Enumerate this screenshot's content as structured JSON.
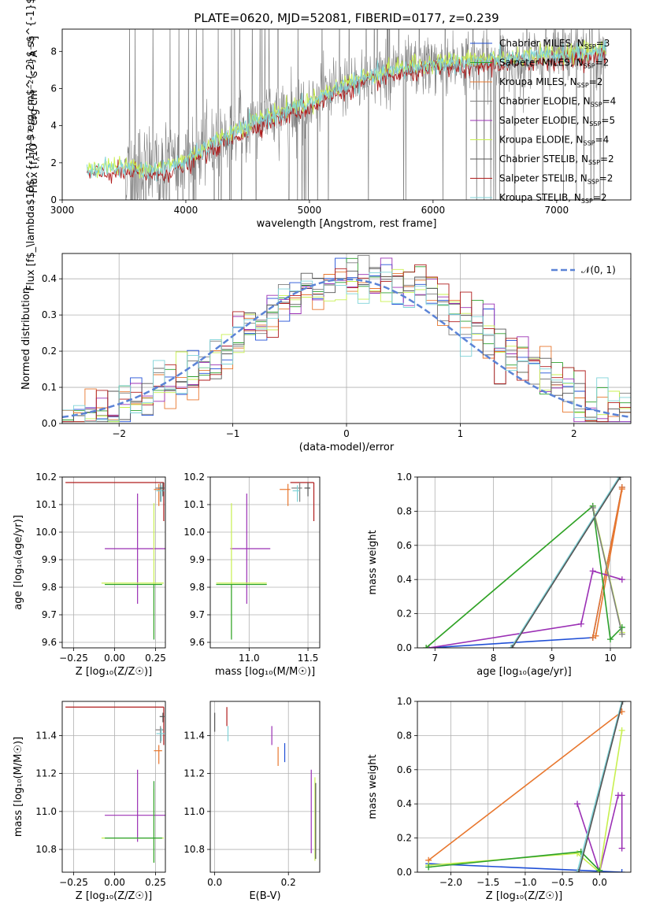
{
  "colors": {
    "chabrier_miles": "#1f4fd6",
    "salpeter_miles": "#2ca02c",
    "kroupa_miles": "#e8772e",
    "chabrier_elodie": "#7f7f7f",
    "salpeter_elodie": "#9b30b5",
    "kroupa_elodie": "#c8f050",
    "chabrier_stelib": "#555555",
    "salpeter_stelib": "#b01c1c",
    "kroupa_stelib": "#7fd3d8",
    "gauss": "#5b83d6",
    "grid": "#b0b0b0"
  },
  "chart_data": [
    {
      "id": "spectrum",
      "type": "line",
      "title": "PLATE=0620, MJD=52081, FIBERID=0177, z=0.239",
      "xlabel": "wavelength [Angstrom, rest frame]",
      "ylabel": "Flux [f$_\\lambda$10$^{-17}$ erg cm$^{-2}$ s$^{-1}$ A$^{-1}$]",
      "ylabel_parts": [
        "Flux [f",
        "λ",
        "10",
        "−17",
        " erg cm",
        "−2",
        " s",
        "−1",
        " A",
        "−1",
        "]"
      ],
      "xlim": [
        3000,
        7600
      ],
      "ylim": [
        0,
        9.2
      ],
      "xticks": [
        "3000",
        "4000",
        "5000",
        "6000",
        "7000"
      ],
      "yticks": [
        "0",
        "2",
        "4",
        "6",
        "8"
      ],
      "grid": false,
      "legend_position": "top-right",
      "legend": [
        {
          "main": "Chabrier MILES, N",
          "sub": "SSP",
          "rest": "=3",
          "color_key": "chabrier_miles"
        },
        {
          "main": "Salpeter MILES, N",
          "sub": "SSP",
          "rest": "=2",
          "color_key": "salpeter_miles"
        },
        {
          "main": "Kroupa MILES, N",
          "sub": "SSP",
          "rest": "=2",
          "color_key": "kroupa_miles"
        },
        {
          "main": "Chabrier ELODIE, N",
          "sub": "SSP",
          "rest": "=4",
          "color_key": "chabrier_elodie"
        },
        {
          "main": "Salpeter ELODIE, N",
          "sub": "SSP",
          "rest": "=5",
          "color_key": "salpeter_elodie"
        },
        {
          "main": "Kroupa ELODIE, N",
          "sub": "SSP",
          "rest": "=4",
          "color_key": "kroupa_elodie"
        },
        {
          "main": "Chabrier STELIB, N",
          "sub": "SSP",
          "rest": "=2",
          "color_key": "chabrier_stelib"
        },
        {
          "main": "Salpeter STELIB, N",
          "sub": "SSP",
          "rest": "=2",
          "color_key": "salpeter_stelib"
        },
        {
          "main": "Kroupa STELIB, N",
          "sub": "SSP",
          "rest": "=2",
          "color_key": "kroupa_stelib"
        }
      ],
      "continuum": {
        "x": [
          3200,
          3500,
          3800,
          4000,
          4300,
          4600,
          5000,
          5300,
          5600,
          6000,
          6300,
          6700,
          7000,
          7400
        ],
        "y": [
          1.6,
          1.7,
          1.6,
          2.1,
          3.3,
          4.3,
          5.2,
          6.2,
          6.8,
          7.3,
          7.4,
          7.6,
          7.8,
          8.0
        ]
      },
      "data_noise_start": 3500,
      "model_start": 3200
    },
    {
      "id": "residuals",
      "type": "histogram",
      "xlabel": "(data-model)/error",
      "ylabel": "Normed distribution",
      "xlim": [
        -2.5,
        2.5
      ],
      "ylim": [
        0,
        0.47
      ],
      "xticks": [
        "−2",
        "−1",
        "0",
        "1",
        "2"
      ],
      "yticks": [
        "0.0",
        "0.1",
        "0.2",
        "0.3",
        "0.4"
      ],
      "grid": true,
      "legend_position": "top-right",
      "legend": [
        {
          "label": "𝒩(0, 1)",
          "color_key": "gauss"
        }
      ],
      "bin_width": 0.1
    },
    {
      "id": "age_vs_Z",
      "type": "scatter",
      "xlabel": "Z [log₁₀(Z/Z☉)]",
      "ylabel": "age  [log₁₀(age/yr)]",
      "xlim": [
        -0.32,
        0.31
      ],
      "ylim": [
        9.58,
        10.2
      ],
      "xticks": [
        "−0.25",
        "0.00",
        "0.25"
      ],
      "yticks": [
        "9.6",
        "9.7",
        "9.8",
        "9.9",
        "10.0",
        "10.1",
        "10.2"
      ],
      "grid": true,
      "points": [
        {
          "key": "salpeter_stelib",
          "x": 0.3,
          "xerr_lo": 0.6,
          "xerr_hi": 0.0,
          "y": 10.18,
          "yerr_lo": 0.14,
          "yerr_hi": 0.0
        },
        {
          "key": "salpeter_elodie",
          "x": 0.14,
          "xerr_lo": 0.2,
          "xerr_hi": 0.17,
          "y": 9.94,
          "yerr_lo": 0.2,
          "yerr_hi": 0.2
        },
        {
          "key": "kroupa_elodie",
          "x": 0.24,
          "xerr_lo": 0.32,
          "xerr_hi": 0.06,
          "y": 9.815,
          "yerr_lo": 0.2,
          "yerr_hi": 0.29
        },
        {
          "key": "salpeter_miles",
          "x": 0.24,
          "xerr_lo": 0.3,
          "xerr_hi": 0.05,
          "y": 9.81,
          "yerr_lo": 0.2,
          "yerr_hi": 0.0
        },
        {
          "key": "kroupa_miles",
          "x": 0.27,
          "xerr_lo": 0.03,
          "xerr_hi": 0.02,
          "y": 10.155,
          "yerr_lo": 0.06,
          "yerr_hi": 0.02
        },
        {
          "key": "chabrier_elodie",
          "x": 0.28,
          "xerr_lo": 0.03,
          "xerr_hi": 0.02,
          "y": 10.16,
          "yerr_lo": 0.05,
          "yerr_hi": 0.02
        },
        {
          "key": "kroupa_stelib",
          "x": 0.285,
          "xerr_lo": 0.03,
          "xerr_hi": 0.02,
          "y": 10.15,
          "yerr_lo": 0.04,
          "yerr_hi": 0.02
        },
        {
          "key": "chabrier_stelib",
          "x": 0.295,
          "xerr_lo": 0.02,
          "xerr_hi": 0.01,
          "y": 10.16,
          "yerr_lo": 0.03,
          "yerr_hi": 0.02
        }
      ]
    },
    {
      "id": "age_vs_mass",
      "type": "scatter",
      "xlabel": "mass [log₁₀(M/M☉)]",
      "ylabel": "",
      "xlim": [
        10.67,
        11.6
      ],
      "ylim": [
        9.58,
        10.2
      ],
      "xticks": [
        "11.0",
        "11.5"
      ],
      "yticks": [
        "9.6",
        "9.7",
        "9.8",
        "9.9",
        "10.0",
        "10.1",
        "10.2"
      ],
      "grid": true,
      "points": [
        {
          "key": "salpeter_stelib",
          "x": 11.55,
          "xerr_lo": 0.2,
          "xerr_hi": 0.0,
          "y": 10.18,
          "yerr_lo": 0.14,
          "yerr_hi": 0.0
        },
        {
          "key": "salpeter_elodie",
          "x": 10.98,
          "xerr_lo": 0.14,
          "xerr_hi": 0.2,
          "y": 9.94,
          "yerr_lo": 0.2,
          "yerr_hi": 0.2
        },
        {
          "key": "kroupa_elodie",
          "x": 10.85,
          "xerr_lo": 0.13,
          "xerr_hi": 0.3,
          "y": 9.815,
          "yerr_lo": 0.2,
          "yerr_hi": 0.29
        },
        {
          "key": "salpeter_miles",
          "x": 10.85,
          "xerr_lo": 0.13,
          "xerr_hi": 0.3,
          "y": 9.81,
          "yerr_lo": 0.2,
          "yerr_hi": 0.0
        },
        {
          "key": "kroupa_miles",
          "x": 11.33,
          "xerr_lo": 0.07,
          "xerr_hi": 0.02,
          "y": 10.155,
          "yerr_lo": 0.06,
          "yerr_hi": 0.02
        },
        {
          "key": "chabrier_elodie",
          "x": 11.43,
          "xerr_lo": 0.07,
          "xerr_hi": 0.02,
          "y": 10.16,
          "yerr_lo": 0.05,
          "yerr_hi": 0.02
        },
        {
          "key": "kroupa_stelib",
          "x": 11.41,
          "xerr_lo": 0.04,
          "xerr_hi": 0.02,
          "y": 10.15,
          "yerr_lo": 0.04,
          "yerr_hi": 0.02
        },
        {
          "key": "chabrier_stelib",
          "x": 11.5,
          "xerr_lo": 0.03,
          "xerr_hi": 0.02,
          "y": 10.16,
          "yerr_lo": 0.03,
          "yerr_hi": 0.02
        }
      ]
    },
    {
      "id": "weight_vs_age",
      "type": "line",
      "xlabel": "age  [log₁₀(age/yr)]",
      "ylabel": "mass weight",
      "xlim": [
        6.7,
        10.35
      ],
      "ylim": [
        0,
        1.0
      ],
      "xticks": [
        "7",
        "8",
        "9",
        "10"
      ],
      "yticks": [
        "0.0",
        "0.2",
        "0.4",
        "0.6",
        "0.8",
        "1.0"
      ],
      "grid": true,
      "series": [
        {
          "key": "chabrier_miles",
          "x": [
            6.9,
            9.7,
            10.2
          ],
          "y": [
            0.0,
            0.06,
            0.94
          ]
        },
        {
          "key": "kroupa_miles",
          "x": [
            9.7,
            10.2
          ],
          "y": [
            0.06,
            0.94
          ]
        },
        {
          "key": "kroupa_miles",
          "x": [
            9.75,
            10.2
          ],
          "y": [
            0.07,
            0.93
          ]
        },
        {
          "key": "salpeter_elodie",
          "x": [
            6.9,
            9.5,
            9.7,
            10.2
          ],
          "y": [
            0.0,
            0.14,
            0.45,
            0.4
          ]
        },
        {
          "key": "kroupa_elodie",
          "x": [
            6.85,
            9.7,
            10.2
          ],
          "y": [
            0.0,
            0.83,
            0.09
          ]
        },
        {
          "key": "salpeter_miles",
          "x": [
            6.85,
            9.7,
            10.0,
            10.2
          ],
          "y": [
            0.0,
            0.83,
            0.05,
            0.12
          ]
        },
        {
          "key": "kroupa_stelib",
          "x": [
            8.3,
            10.15
          ],
          "y": [
            0.0,
            1.0
          ]
        },
        {
          "key": "chabrier_stelib",
          "x": [
            8.32,
            10.17
          ],
          "y": [
            0.0,
            1.0
          ]
        },
        {
          "key": "chabrier_elodie",
          "x": [
            9.7,
            10.2
          ],
          "y": [
            0.82,
            0.08
          ]
        }
      ]
    },
    {
      "id": "mass_vs_Z",
      "type": "scatter",
      "xlabel": "Z [log₁₀(Z/Z☉)]",
      "ylabel": "mass [log₁₀(M/M☉)]",
      "xlim": [
        -0.32,
        0.31
      ],
      "ylim": [
        10.68,
        11.58
      ],
      "xticks": [
        "−0.25",
        "0.00",
        "0.25"
      ],
      "yticks": [
        "10.8",
        "11.0",
        "11.2",
        "11.4"
      ],
      "grid": true,
      "points": [
        {
          "key": "salpeter_stelib",
          "x": 0.3,
          "xerr_lo": 0.6,
          "xerr_hi": 0.0,
          "y": 11.55,
          "yerr_lo": 0.2,
          "yerr_hi": 0.0
        },
        {
          "key": "salpeter_elodie",
          "x": 0.14,
          "xerr_lo": 0.2,
          "xerr_hi": 0.17,
          "y": 10.98,
          "yerr_lo": 0.14,
          "yerr_hi": 0.24
        },
        {
          "key": "kroupa_elodie",
          "x": 0.24,
          "xerr_lo": 0.32,
          "xerr_hi": 0.06,
          "y": 10.86,
          "yerr_lo": 0.13,
          "yerr_hi": 0.26
        },
        {
          "key": "salpeter_miles",
          "x": 0.24,
          "xerr_lo": 0.3,
          "xerr_hi": 0.05,
          "y": 10.86,
          "yerr_lo": 0.13,
          "yerr_hi": 0.3
        },
        {
          "key": "kroupa_miles",
          "x": 0.27,
          "xerr_lo": 0.03,
          "xerr_hi": 0.02,
          "y": 11.32,
          "yerr_lo": 0.07,
          "yerr_hi": 0.03
        },
        {
          "key": "chabrier_elodie",
          "x": 0.28,
          "xerr_lo": 0.03,
          "xerr_hi": 0.02,
          "y": 11.43,
          "yerr_lo": 0.07,
          "yerr_hi": 0.02
        },
        {
          "key": "kroupa_stelib",
          "x": 0.285,
          "xerr_lo": 0.03,
          "xerr_hi": 0.02,
          "y": 11.41,
          "yerr_lo": 0.04,
          "yerr_hi": 0.03
        },
        {
          "key": "chabrier_stelib",
          "x": 0.295,
          "xerr_lo": 0.02,
          "xerr_hi": 0.01,
          "y": 11.5,
          "yerr_lo": 0.03,
          "yerr_hi": 0.02
        }
      ]
    },
    {
      "id": "mass_vs_ebv",
      "type": "scatter",
      "xlabel": "E(B-V)",
      "ylabel": "",
      "xlim": [
        -0.012,
        0.285
      ],
      "ylim": [
        10.68,
        11.58
      ],
      "xticks": [
        "0.0",
        "0.2"
      ],
      "yticks": [
        "10.8",
        "11.0",
        "11.2",
        "11.4"
      ],
      "grid": true,
      "points": [
        {
          "key": "chabrier_stelib",
          "x": 0.0,
          "xerr_lo": 0,
          "xerr_hi": 0,
          "y": 11.47,
          "yerr_lo": 0.05,
          "yerr_hi": 0.05
        },
        {
          "key": "salpeter_stelib",
          "x": 0.033,
          "xerr_lo": 0,
          "xerr_hi": 0,
          "y": 11.5,
          "yerr_lo": 0.05,
          "yerr_hi": 0.05
        },
        {
          "key": "kroupa_stelib",
          "x": 0.036,
          "xerr_lo": 0,
          "xerr_hi": 0,
          "y": 11.41,
          "yerr_lo": 0.04,
          "yerr_hi": 0.04
        },
        {
          "key": "salpeter_elodie",
          "x": 0.155,
          "xerr_lo": 0,
          "xerr_hi": 0,
          "y": 11.4,
          "yerr_lo": 0.05,
          "yerr_hi": 0.05
        },
        {
          "key": "kroupa_miles",
          "x": 0.172,
          "xerr_lo": 0,
          "xerr_hi": 0,
          "y": 11.29,
          "yerr_lo": 0.05,
          "yerr_hi": 0.05
        },
        {
          "key": "chabrier_miles",
          "x": 0.19,
          "xerr_lo": 0,
          "xerr_hi": 0,
          "y": 11.31,
          "yerr_lo": 0.05,
          "yerr_hi": 0.05
        },
        {
          "key": "salpeter_elodie",
          "x": 0.262,
          "xerr_lo": 0,
          "xerr_hi": 0,
          "y": 10.98,
          "yerr_lo": 0.2,
          "yerr_hi": 0.24
        },
        {
          "key": "kroupa_elodie",
          "x": 0.272,
          "xerr_lo": 0,
          "xerr_hi": 0,
          "y": 10.94,
          "yerr_lo": 0.2,
          "yerr_hi": 0.24
        },
        {
          "key": "chabrier_stelib",
          "x": 0.274,
          "xerr_lo": 0,
          "xerr_hi": 0,
          "y": 10.95,
          "yerr_lo": 0.2,
          "yerr_hi": 0.2
        }
      ]
    },
    {
      "id": "weight_vs_Z",
      "type": "line",
      "xlabel": "Z [log₁₀(Z/Z☉)]",
      "ylabel": "mass weight",
      "xlim": [
        -2.45,
        0.42
      ],
      "ylim": [
        0,
        1.0
      ],
      "xticks": [
        "−2.0",
        "−1.5",
        "−1.0",
        "−0.5",
        "0.0"
      ],
      "yticks": [
        "0.0",
        "0.2",
        "0.4",
        "0.6",
        "0.8",
        "1.0"
      ],
      "grid": true,
      "series": [
        {
          "key": "chabrier_miles",
          "x": [
            -2.3,
            0.3
          ],
          "y": [
            0.05,
            0.0
          ]
        },
        {
          "key": "kroupa_miles",
          "x": [
            -2.3,
            0.3
          ],
          "y": [
            0.07,
            0.94
          ]
        },
        {
          "key": "salpeter_elodie",
          "x": [
            -0.3,
            0.0,
            0.25,
            0.3,
            0.3
          ],
          "y": [
            0.4,
            0.0,
            0.45,
            0.45,
            0.14
          ]
        },
        {
          "key": "kroupa_elodie",
          "x": [
            -2.3,
            -0.3,
            0.0,
            0.3
          ],
          "y": [
            0.04,
            0.11,
            0.0,
            0.83
          ]
        },
        {
          "key": "salpeter_miles",
          "x": [
            -2.3,
            -0.25,
            0.0
          ],
          "y": [
            0.03,
            0.12,
            0.01
          ]
        },
        {
          "key": "kroupa_stelib",
          "x": [
            -0.3,
            0.3
          ],
          "y": [
            0.0,
            1.0
          ]
        },
        {
          "key": "chabrier_stelib",
          "x": [
            -0.28,
            0.31
          ],
          "y": [
            0.0,
            1.0
          ]
        }
      ]
    }
  ]
}
